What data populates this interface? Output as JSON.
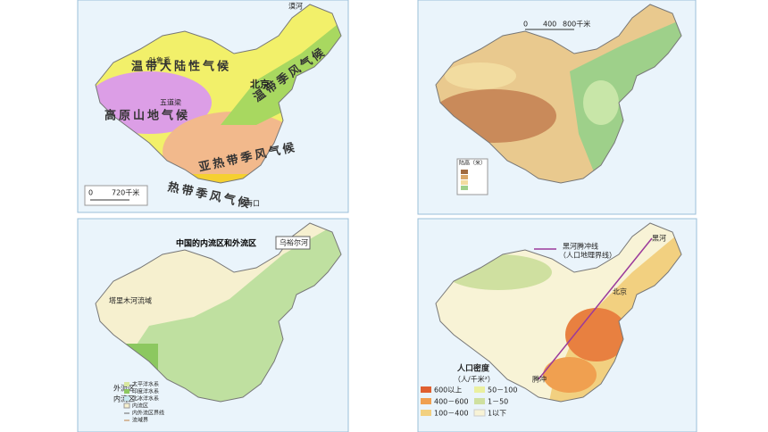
{
  "climate_map": {
    "labels": [
      "温带大陆性气候",
      "高原山地气候",
      "温带季风气候",
      "亚热带季风气候",
      "热带季风气候"
    ],
    "places": [
      "北京",
      "吐鲁番",
      "五道梁",
      "海口",
      "漠河"
    ],
    "scale": [
      "0",
      "720千米"
    ]
  },
  "terrain_map": {
    "scale": [
      "0",
      "400",
      "800千米"
    ],
    "legend_title": "陆高（米）"
  },
  "drainage_map": {
    "title": "中国的内流区和外流区",
    "river_label": "乌裕尔河",
    "basin_label": "塔里木河流域",
    "region_labels": [
      "外流区",
      "内流区"
    ],
    "legend": [
      "太平洋水系",
      "印度洋水系",
      "北冰洋水系",
      "内流区",
      "内外流区界线",
      "流域界"
    ]
  },
  "population_map": {
    "line_name": "黑河腾冲线",
    "line_note": "（人口地理界线）",
    "places": [
      "黑河",
      "北京",
      "腾冲"
    ],
    "legend_title": "人口密度",
    "legend_unit": "（人/千米²）",
    "legend": [
      "600以上",
      "400－600",
      "100－400",
      "50－100",
      "1－50",
      "1以下"
    ]
  }
}
